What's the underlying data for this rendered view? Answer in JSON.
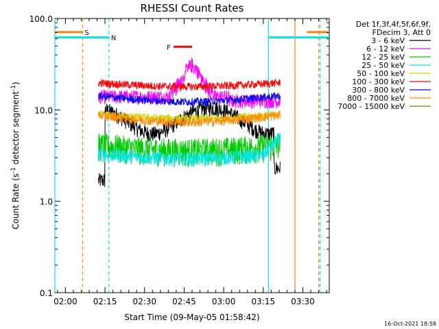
{
  "chart_data": {
    "type": "line",
    "title": "RHESSI Count Rates",
    "xlabel": "Start Time (09-May-05 01:58:42)",
    "ylabel_main": "Count Rate (s",
    "ylabel_sup": "-1",
    "ylabel_tail": " detector segment",
    "ylabel_sup2": "-1",
    "ylabel_end": ")",
    "y_scale": "log",
    "ylim": [
      0.1,
      100
    ],
    "xlim_minutes": [
      -4,
      100
    ],
    "x_ticks": [
      {
        "label": "02:00",
        "min": 0
      },
      {
        "label": "02:15",
        "min": 15
      },
      {
        "label": "02:30",
        "min": 30
      },
      {
        "label": "02:45",
        "min": 45
      },
      {
        "label": "03:00",
        "min": 60
      },
      {
        "label": "03:15",
        "min": 75
      },
      {
        "label": "03:30",
        "min": 90
      }
    ],
    "y_ticks": [
      {
        "label": "100.0",
        "value": 100
      },
      {
        "label": "10.0",
        "value": 10
      },
      {
        "label": "1.0",
        "value": 1
      },
      {
        "label": "0.1",
        "value": 0.1
      }
    ],
    "legend_header": [
      "Det 1f,3f,4f,5f,6f,9f,",
      "FDecim 3, Att 0"
    ],
    "series": [
      {
        "name": "3 - 6 keV",
        "color": "#000000",
        "level": 10.0
      },
      {
        "name": "6 - 12 keV",
        "color": "#ff00ff",
        "level": 14.0
      },
      {
        "name": "12 - 25 keV",
        "color": "#00cc00",
        "level": 3.6
      },
      {
        "name": "25 - 50 keV",
        "color": "#00e5e5",
        "level": 3.0
      },
      {
        "name": "50 - 100 keV",
        "color": "#d4d400",
        "level": 8.5
      },
      {
        "name": "100 - 300 keV",
        "color": "#ff0000",
        "level": 18.0
      },
      {
        "name": "300 - 800 keV",
        "color": "#0000ff",
        "level": 11.0
      },
      {
        "name": "800 - 7000 keV",
        "color": "#ff8c00",
        "level": 7.0
      },
      {
        "name": "7000 - 15000 keV",
        "color": "#7a7a00",
        "level": null
      }
    ],
    "data_interval_minutes": [
      12.5,
      81.5
    ],
    "flag_bars": [
      {
        "label": "S",
        "color": "#ff8000",
        "y": 71,
        "segments": [
          [
            -4,
            6.5
          ],
          [
            91.5,
            100
          ]
        ]
      },
      {
        "label": "N",
        "color": "#00e5e5",
        "y": 62,
        "segments": [
          [
            -4,
            16.5
          ],
          [
            77,
            100
          ]
        ]
      },
      {
        "label": "F",
        "color": "#ff0000",
        "y": 49,
        "segments": [
          [
            41,
            48
          ]
        ]
      }
    ],
    "vertical_markers": [
      {
        "min": -4,
        "color": "#00e5e5",
        "style": "solid"
      },
      {
        "min": 6.5,
        "color": "#ff8000",
        "style": "dashed"
      },
      {
        "min": 16.5,
        "color": "#00e5e5",
        "style": "dashed"
      },
      {
        "min": 77,
        "color": "#00e5e5",
        "style": "solid"
      },
      {
        "min": 87,
        "color": "#ff8000",
        "style": "solid"
      },
      {
        "min": 96,
        "color": "#ff8000",
        "style": "dashed"
      },
      {
        "min": 96.5,
        "color": "#00e5e5",
        "style": "dashed"
      }
    ],
    "timestamp": "16-Oct-2021 18:58"
  }
}
